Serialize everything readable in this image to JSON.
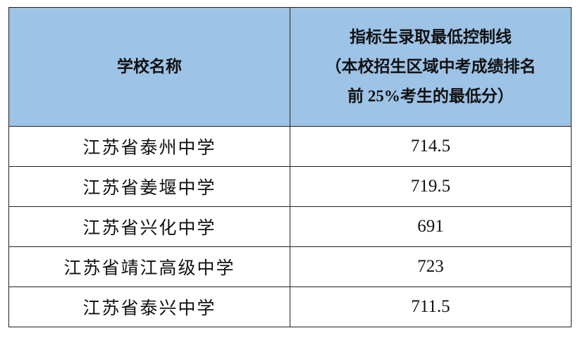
{
  "header": {
    "col_school": "学校名称",
    "col_score_lines": [
      "指标生录取最低控制线",
      "（本校招生区域中考成绩排名",
      "前 25%考生的最低分）"
    ]
  },
  "rows": [
    {
      "school": "江苏省泰州中学",
      "score": "714.5"
    },
    {
      "school": "江苏省姜堰中学",
      "score": "719.5"
    },
    {
      "school": "江苏省兴化中学",
      "score": "691"
    },
    {
      "school": "江苏省靖江高级中学",
      "score": "723"
    },
    {
      "school": "江苏省泰兴中学",
      "score": "711.5"
    }
  ],
  "colors": {
    "header_bg": "#9dc3e6",
    "border": "#222222"
  }
}
